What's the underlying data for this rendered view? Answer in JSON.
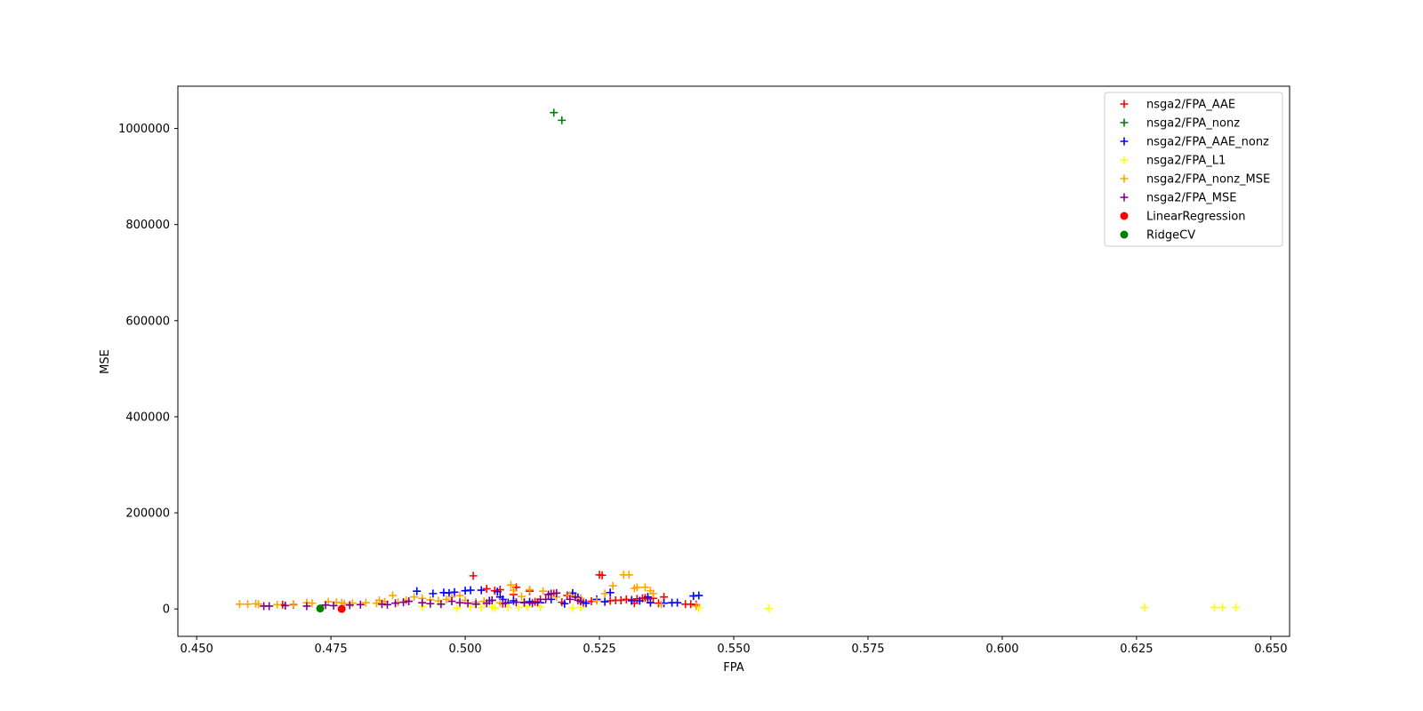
{
  "chart_data": {
    "type": "scatter",
    "title": "",
    "xlabel": "FPA",
    "ylabel": "MSE",
    "xlim": [
      0.4465,
      0.6535
    ],
    "ylim": [
      -57000,
      1088000
    ],
    "xticks": [
      0.45,
      0.475,
      0.5,
      0.525,
      0.55,
      0.575,
      0.6,
      0.625,
      0.65
    ],
    "xtick_labels": [
      "0.450",
      "0.475",
      "0.500",
      "0.525",
      "0.550",
      "0.575",
      "0.600",
      "0.625",
      "0.650"
    ],
    "yticks": [
      0,
      200000,
      400000,
      600000,
      800000,
      1000000
    ],
    "ytick_labels": [
      "0",
      "200000",
      "400000",
      "600000",
      "800000",
      "1000000"
    ],
    "grid": false,
    "legend_position": "top-right",
    "series": [
      {
        "name": "nsga2/FPA_AAE",
        "color": "#ff0000",
        "marker": "plus",
        "points": [
          [
            0.466,
            9000
          ],
          [
            0.468,
            9000
          ],
          [
            0.5015,
            69000
          ],
          [
            0.504,
            42000
          ],
          [
            0.5055,
            38000
          ],
          [
            0.5065,
            40000
          ],
          [
            0.507,
            11000
          ],
          [
            0.509,
            30000
          ],
          [
            0.5095,
            45000
          ],
          [
            0.511,
            14000
          ],
          [
            0.512,
            37000
          ],
          [
            0.513,
            15000
          ],
          [
            0.514,
            20000
          ],
          [
            0.5165,
            32000
          ],
          [
            0.518,
            14000
          ],
          [
            0.519,
            28000
          ],
          [
            0.521,
            18000
          ],
          [
            0.522,
            13000
          ],
          [
            0.5235,
            16000
          ],
          [
            0.525,
            71000
          ],
          [
            0.5255,
            70000
          ],
          [
            0.527,
            17000
          ],
          [
            0.528,
            18000
          ],
          [
            0.529,
            18000
          ],
          [
            0.53,
            20000
          ],
          [
            0.531,
            19000
          ],
          [
            0.5315,
            12000
          ],
          [
            0.532,
            21000
          ],
          [
            0.533,
            22000
          ],
          [
            0.5335,
            23000
          ],
          [
            0.534,
            21000
          ],
          [
            0.535,
            22000
          ],
          [
            0.536,
            12000
          ],
          [
            0.537,
            25000
          ],
          [
            0.541,
            10000
          ],
          [
            0.542,
            10000
          ],
          [
            0.543,
            9000
          ]
        ]
      },
      {
        "name": "nsga2/FPA_nonz",
        "color": "#008000",
        "marker": "plus",
        "points": [
          [
            0.5165,
            1033000
          ],
          [
            0.518,
            1017000
          ]
        ]
      },
      {
        "name": "nsga2/FPA_AAE_nonz",
        "color": "#0000ff",
        "marker": "plus",
        "points": [
          [
            0.491,
            37000
          ],
          [
            0.494,
            32000
          ],
          [
            0.496,
            34000
          ],
          [
            0.497,
            33000
          ],
          [
            0.498,
            35000
          ],
          [
            0.5,
            38000
          ],
          [
            0.501,
            39000
          ],
          [
            0.502,
            14000
          ],
          [
            0.503,
            39000
          ],
          [
            0.5045,
            17000
          ],
          [
            0.506,
            36000
          ],
          [
            0.5065,
            25000
          ],
          [
            0.507,
            20000
          ],
          [
            0.508,
            13000
          ],
          [
            0.509,
            17000
          ],
          [
            0.512,
            15000
          ],
          [
            0.514,
            13000
          ],
          [
            0.516,
            20000
          ],
          [
            0.5185,
            11000
          ],
          [
            0.52,
            33000
          ],
          [
            0.521,
            24000
          ],
          [
            0.5225,
            12000
          ],
          [
            0.5245,
            20000
          ],
          [
            0.526,
            15000
          ],
          [
            0.527,
            34000
          ],
          [
            0.531,
            17000
          ],
          [
            0.5325,
            17000
          ],
          [
            0.534,
            25000
          ],
          [
            0.5345,
            13000
          ],
          [
            0.537,
            12000
          ],
          [
            0.5385,
            13000
          ],
          [
            0.5395,
            13000
          ],
          [
            0.5425,
            27000
          ],
          [
            0.5435,
            28000
          ]
        ]
      },
      {
        "name": "nsga2/FPA_L1",
        "color": "#ffff00",
        "marker": "plus",
        "points": [
          [
            0.492,
            5000
          ],
          [
            0.4985,
            2000
          ],
          [
            0.501,
            4000
          ],
          [
            0.503,
            3000
          ],
          [
            0.505,
            4000
          ],
          [
            0.5055,
            2000
          ],
          [
            0.508,
            3000
          ],
          [
            0.51,
            3000
          ],
          [
            0.5115,
            5000
          ],
          [
            0.514,
            4000
          ],
          [
            0.52,
            2000
          ],
          [
            0.5215,
            3000
          ],
          [
            0.5435,
            2000
          ],
          [
            0.5565,
            1000
          ],
          [
            0.6265,
            3000
          ],
          [
            0.6395,
            3000
          ],
          [
            0.641,
            3000
          ],
          [
            0.6435,
            3000
          ]
        ]
      },
      {
        "name": "nsga2/FPA_nonz_MSE",
        "color": "#ffa500",
        "marker": "plus",
        "points": [
          [
            0.458,
            10000
          ],
          [
            0.4595,
            10000
          ],
          [
            0.461,
            11000
          ],
          [
            0.4615,
            10000
          ],
          [
            0.465,
            9000
          ],
          [
            0.468,
            10000
          ],
          [
            0.4705,
            13000
          ],
          [
            0.4715,
            12000
          ],
          [
            0.4745,
            15000
          ],
          [
            0.476,
            14000
          ],
          [
            0.477,
            13000
          ],
          [
            0.4775,
            11000
          ],
          [
            0.479,
            12000
          ],
          [
            0.4815,
            13000
          ],
          [
            0.4835,
            12000
          ],
          [
            0.484,
            18000
          ],
          [
            0.485,
            15000
          ],
          [
            0.4865,
            28000
          ],
          [
            0.4875,
            14000
          ],
          [
            0.489,
            18000
          ],
          [
            0.4905,
            25000
          ],
          [
            0.492,
            22000
          ],
          [
            0.4935,
            19000
          ],
          [
            0.495,
            17000
          ],
          [
            0.4965,
            20000
          ],
          [
            0.4975,
            25000
          ],
          [
            0.499,
            28000
          ],
          [
            0.5,
            18000
          ],
          [
            0.502,
            14000
          ],
          [
            0.5035,
            16000
          ],
          [
            0.505,
            18000
          ],
          [
            0.5065,
            13000
          ],
          [
            0.5085,
            50000
          ],
          [
            0.509,
            39000
          ],
          [
            0.5105,
            26000
          ],
          [
            0.512,
            40000
          ],
          [
            0.5145,
            37000
          ],
          [
            0.5155,
            30000
          ],
          [
            0.517,
            25000
          ],
          [
            0.5195,
            28000
          ],
          [
            0.5215,
            22000
          ],
          [
            0.5245,
            17000
          ],
          [
            0.526,
            32000
          ],
          [
            0.5275,
            48000
          ],
          [
            0.5295,
            71000
          ],
          [
            0.5305,
            71000
          ],
          [
            0.5315,
            43000
          ],
          [
            0.532,
            45000
          ],
          [
            0.5335,
            45000
          ],
          [
            0.5345,
            38000
          ],
          [
            0.535,
            32000
          ],
          [
            0.5365,
            10000
          ],
          [
            0.543,
            6000
          ]
        ]
      },
      {
        "name": "nsga2/FPA_MSE",
        "color": "#800080",
        "marker": "plus",
        "points": [
          [
            0.4625,
            6000
          ],
          [
            0.4635,
            6000
          ],
          [
            0.4665,
            7000
          ],
          [
            0.4705,
            6000
          ],
          [
            0.474,
            8000
          ],
          [
            0.4755,
            7000
          ],
          [
            0.4785,
            8000
          ],
          [
            0.4805,
            9000
          ],
          [
            0.4845,
            10000
          ],
          [
            0.4855,
            9000
          ],
          [
            0.487,
            12000
          ],
          [
            0.4885,
            14000
          ],
          [
            0.4895,
            16000
          ],
          [
            0.492,
            13000
          ],
          [
            0.4935,
            11000
          ],
          [
            0.4955,
            10000
          ],
          [
            0.4975,
            16000
          ],
          [
            0.499,
            13000
          ],
          [
            0.5005,
            12000
          ],
          [
            0.502,
            10000
          ],
          [
            0.504,
            12000
          ],
          [
            0.505,
            18000
          ],
          [
            0.5075,
            12000
          ],
          [
            0.5095,
            14000
          ],
          [
            0.511,
            13000
          ],
          [
            0.5125,
            12000
          ],
          [
            0.5135,
            14000
          ],
          [
            0.515,
            20000
          ],
          [
            0.5155,
            30000
          ],
          [
            0.516,
            32000
          ],
          [
            0.517,
            33000
          ],
          [
            0.5195,
            20000
          ],
          [
            0.5205,
            25000
          ],
          [
            0.5215,
            16000
          ]
        ]
      },
      {
        "name": "LinearRegression",
        "color": "#ff0000",
        "marker": "circle",
        "points": [
          [
            0.477,
            0
          ]
        ]
      },
      {
        "name": "RidgeCV",
        "color": "#008000",
        "marker": "circle",
        "points": [
          [
            0.473,
            1000
          ]
        ]
      }
    ]
  }
}
